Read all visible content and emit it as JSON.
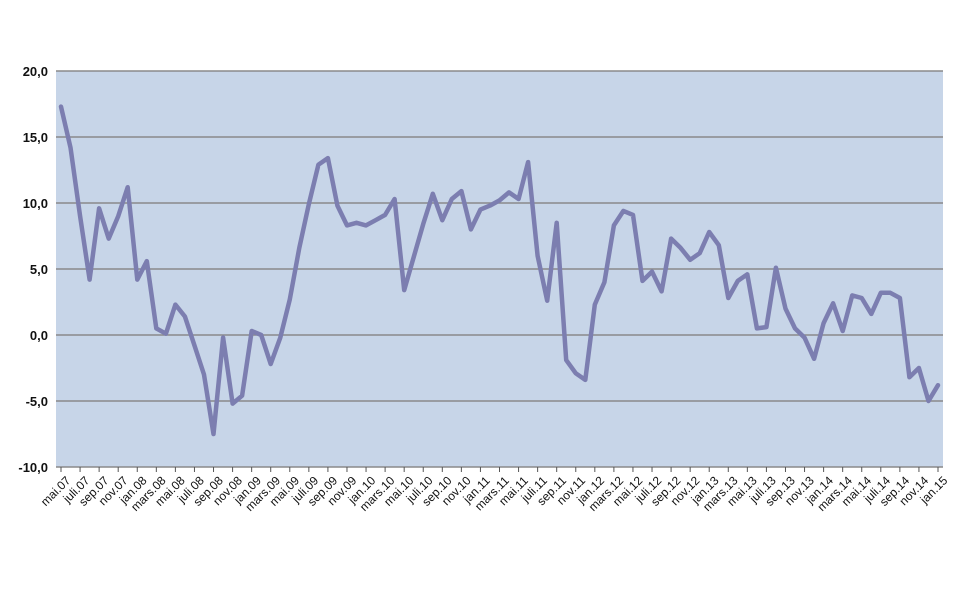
{
  "chart_data": {
    "type": "line",
    "title": "",
    "xlabel": "",
    "ylabel": "",
    "ylim": [
      -10,
      20
    ],
    "yticks": [
      "20,0",
      "15,0",
      "10,0",
      "5,0",
      "0,0",
      "-5,0",
      "-10,0"
    ],
    "ytick_values": [
      20,
      15,
      10,
      5,
      0,
      -5,
      -10
    ],
    "grid": "horizontal",
    "legend": "none",
    "colors": {
      "plot_bg": "#c7d5e8",
      "line": "#7c7eb0",
      "grid": "#8a8a8a"
    },
    "x": [
      "mai.07",
      "juni.07",
      "juli.07",
      "aug.07",
      "sep.07",
      "okt.07",
      "nov.07",
      "des.07",
      "jan.08",
      "feb.08",
      "mars.08",
      "apr.08",
      "mai.08",
      "juni.08",
      "juli.08",
      "aug.08",
      "sep.08",
      "okt.08",
      "nov.08",
      "des.08",
      "jan.09",
      "feb.09",
      "mars.09",
      "apr.09",
      "mai.09",
      "juni.09",
      "juli.09",
      "aug.09",
      "sep.09",
      "okt.09",
      "nov.09",
      "des.09",
      "jan.10",
      "feb.10",
      "mars.10",
      "apr.10",
      "mai.10",
      "juni.10",
      "juli.10",
      "aug.10",
      "sep.10",
      "okt.10",
      "nov.10",
      "des.10",
      "jan.11",
      "feb.11",
      "mars.11",
      "apr.11",
      "mai.11",
      "juni.11",
      "juli.11",
      "aug.11",
      "sep.11",
      "okt.11",
      "nov.11",
      "des.11",
      "jan.12",
      "feb.12",
      "mars.12",
      "apr.12",
      "mai.12",
      "juni.12",
      "juli.12",
      "aug.12",
      "sep.12",
      "okt.12",
      "nov.12",
      "des.12",
      "jan.13",
      "feb.13",
      "mars.13",
      "apr.13",
      "mai.13",
      "juni.13",
      "juli.13",
      "aug.13",
      "sep.13",
      "okt.13",
      "nov.13",
      "des.13",
      "jan.14",
      "feb.14",
      "mars.14",
      "apr.14",
      "mai.14",
      "juni.14",
      "juli.14",
      "aug.14",
      "sep.14",
      "okt.14",
      "nov.14",
      "des.14",
      "jan.15"
    ],
    "tick_labels": [
      "mai.07",
      "juli.07",
      "sep.07",
      "nov.07",
      "jan.08",
      "mars.08",
      "mai.08",
      "juli.08",
      "sep.08",
      "nov.08",
      "jan.09",
      "mars.09",
      "mai.09",
      "juli.09",
      "sep.09",
      "nov.09",
      "jan.10",
      "mars.10",
      "mai.10",
      "juli.10",
      "sep.10",
      "nov.10",
      "jan.11",
      "mars.11",
      "mai.11",
      "juli.11",
      "sep.11",
      "nov.11",
      "jan.12",
      "mars.12",
      "mai.12",
      "juli.12",
      "sep.12",
      "nov.12",
      "jan.13",
      "mars.13",
      "mai.13",
      "juli.13",
      "sep.13",
      "nov.13",
      "jan.14",
      "mars.14",
      "mai.14",
      "juli.14",
      "sep.14",
      "nov.14",
      "jan.15"
    ],
    "series": [
      {
        "values": [
          17.3,
          14.2,
          9.0,
          4.2,
          9.6,
          7.3,
          9.0,
          11.2,
          4.2,
          5.6,
          0.5,
          0.1,
          2.3,
          1.4,
          -0.8,
          -3.0,
          -7.5,
          -0.2,
          -5.2,
          -4.6,
          0.3,
          0.0,
          -2.2,
          -0.2,
          2.7,
          6.6,
          9.9,
          12.9,
          13.4,
          9.8,
          8.3,
          8.5,
          8.3,
          8.7,
          9.1,
          10.3,
          3.4,
          5.9,
          8.4,
          10.7,
          8.7,
          10.3,
          10.9,
          8.0,
          9.5,
          9.8,
          10.2,
          10.8,
          10.3,
          13.1,
          6.0,
          2.6,
          8.5,
          -1.9,
          -2.9,
          -3.4,
          2.3,
          4.0,
          8.3,
          9.4,
          9.1,
          4.1,
          4.8,
          3.3,
          7.3,
          6.6,
          5.7,
          6.2,
          7.8,
          6.8,
          2.8,
          4.1,
          4.6,
          0.5,
          0.6,
          5.1,
          2.0,
          0.5,
          -0.2,
          -1.8,
          0.9,
          2.4,
          0.3,
          3.0,
          2.8,
          1.6,
          3.2,
          3.2,
          2.8,
          -3.2,
          -2.5,
          -5.0,
          -3.8
        ]
      }
    ]
  }
}
